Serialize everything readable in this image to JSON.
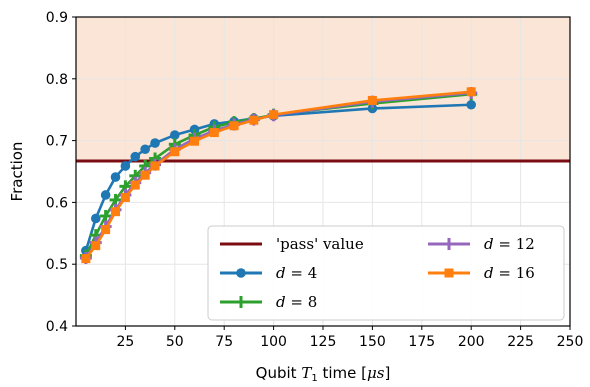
{
  "chart_data": {
    "type": "line",
    "xlabel": "Qubit T1 time [μs]",
    "ylabel": "Fraction",
    "xlim": [
      0,
      250
    ],
    "ylim": [
      0.4,
      0.9
    ],
    "x_ticks": [
      "25",
      "50",
      "75",
      "100",
      "125",
      "150",
      "175",
      "200",
      "225",
      "250"
    ],
    "y_ticks": [
      "0.4",
      "0.5",
      "0.6",
      "0.7",
      "0.8",
      "0.9"
    ],
    "grid": true,
    "pass_value": 0.667,
    "pass_label": "'pass' value",
    "shaded_region": {
      "from": 0.667,
      "to": 0.9,
      "color": "#fbe5d6"
    },
    "pass_line_color": "#7b0c12",
    "legend_position": "lower-right",
    "x": [
      5,
      10,
      15,
      20,
      25,
      30,
      35,
      40,
      50,
      60,
      70,
      80,
      90,
      100,
      150,
      200
    ],
    "series": [
      {
        "name": "d = 4",
        "color": "#1f77b4",
        "marker": "circle",
        "values": [
          0.522,
          0.574,
          0.612,
          0.641,
          0.659,
          0.674,
          0.686,
          0.696,
          0.709,
          0.718,
          0.727,
          0.731,
          0.736,
          0.74,
          0.752,
          0.758
        ]
      },
      {
        "name": "d = 8",
        "color": "#2ca02c",
        "marker": "plus",
        "values": [
          0.514,
          0.547,
          0.578,
          0.604,
          0.626,
          0.643,
          0.659,
          0.671,
          0.694,
          0.709,
          0.722,
          0.73,
          0.735,
          0.742,
          0.76,
          0.775
        ]
      },
      {
        "name": "d = 12",
        "color": "#9467bd",
        "marker": "plus",
        "values": [
          0.51,
          0.535,
          0.561,
          0.588,
          0.612,
          0.632,
          0.648,
          0.661,
          0.686,
          0.703,
          0.716,
          0.726,
          0.734,
          0.741,
          0.763,
          0.777
        ]
      },
      {
        "name": "d = 16",
        "color": "#ff7f0e",
        "marker": "square",
        "values": [
          0.509,
          0.53,
          0.556,
          0.585,
          0.608,
          0.628,
          0.644,
          0.659,
          0.682,
          0.699,
          0.713,
          0.724,
          0.733,
          0.742,
          0.765,
          0.779
        ]
      }
    ]
  }
}
